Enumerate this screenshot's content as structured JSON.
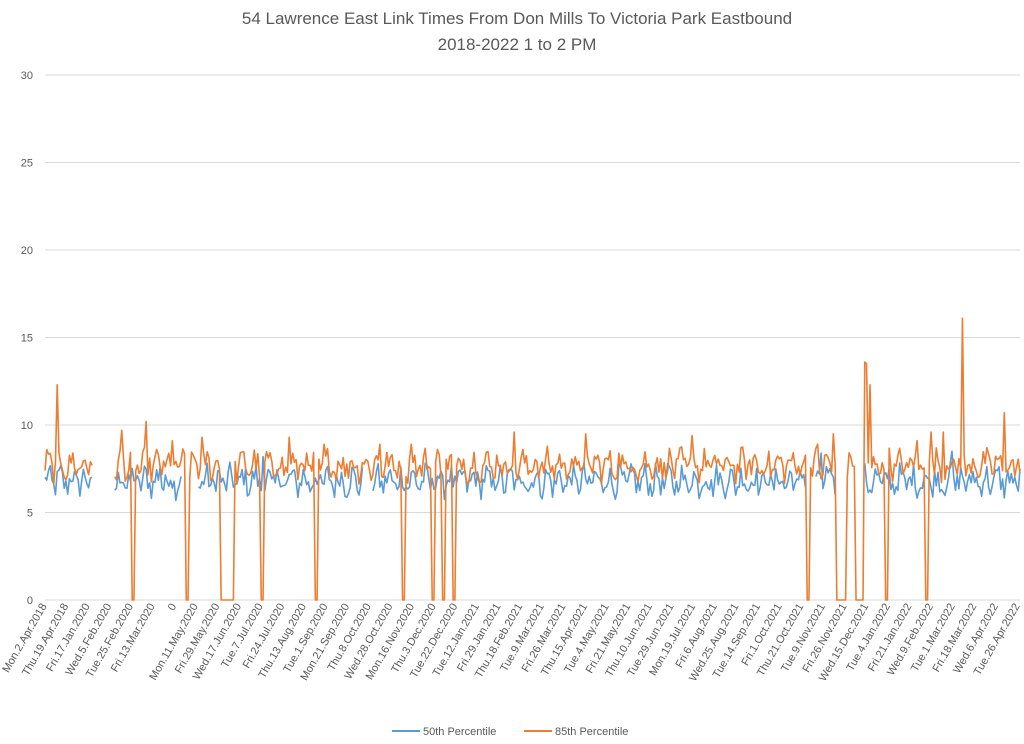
{
  "chart_data": {
    "type": "line",
    "title": "54 Lawrence East Link Times From Don Mills To Victoria Park Eastbound",
    "subtitle": "2018-2022 1 to 2 PM",
    "xlabel": "",
    "ylabel": "",
    "ylim": [
      0,
      30
    ],
    "yticks": [
      0,
      5,
      10,
      15,
      20,
      25,
      30
    ],
    "grid": true,
    "legend_position": "bottom",
    "x_tick_labels": [
      "Mon.2.Apr.2018",
      "Thu.19.Apr.2018",
      "Fri.17.Jan.2020",
      "Wed.5.Feb.2020",
      "Tue.25.Feb.2020",
      "Fri.13.Mar.2020",
      "0",
      "Mon.11.May.2020",
      "Fri.29.May.2020",
      "Wed.17.Jun.2020",
      "Tue.7.Jul.2020",
      "Fri.24.Jul.2020",
      "Thu.13.Aug.2020",
      "Tue.1.Sep.2020",
      "Mon.21.Sep.2020",
      "Thu.8.Oct.2020",
      "Wed.28.Oct.2020",
      "Mon.16.Nov.2020",
      "Thu.3.Dec.2020",
      "Tue.22.Dec.2020",
      "Tue.12.Jan.2021",
      "Fri.29.Jan.2021",
      "Thu.18.Feb.2021",
      "Tue.9.Mar.2021",
      "Fri.26.Mar.2021",
      "Thu.15.Apr.2021",
      "Tue.4.May.2021",
      "Fri.21.May.2021",
      "Thu.10.Jun.2021",
      "Tue.29.Jun.2021",
      "Mon.19.Jul.2021",
      "Fri.6.Aug.2021",
      "Wed.25.Aug.2021",
      "Tue.14.Sep.2021",
      "Fri.1.Oct.2021",
      "Thu.21.Oct.2021",
      "Tue.9.Nov.2021",
      "Fri.26.Nov.2021",
      "Wed.15.Dec.2021",
      "Tue.4.Jan.2022",
      "Fri.21.Jan.2022",
      "Wed.9.Feb.2022",
      "Tue.1.Mar.2022",
      "Fri.18.Mar.2022",
      "Wed.6.Apr.2022",
      "Tue.26.Apr.2022"
    ],
    "point_count": 560,
    "series_50_base": 6.8,
    "series_85_base": 7.7,
    "series": [
      {
        "name": "50th Percentile",
        "color": "#5b9bd5",
        "segments": [
          {
            "from": 0,
            "to": 28
          },
          {
            "from": 40,
            "to": 560
          }
        ],
        "spikes": [
          {
            "i": 66,
            "v": 7.6
          },
          {
            "i": 125,
            "v": 8.2
          },
          {
            "i": 445,
            "v": 8.4
          },
          {
            "i": 520,
            "v": 8.5
          }
        ],
        "gaps": [
          {
            "from": 79,
            "to": 87
          },
          {
            "from": 183,
            "to": 187
          },
          {
            "from": 437,
            "to": 441
          },
          {
            "from": 454,
            "to": 464
          },
          {
            "from": 465,
            "to": 469
          }
        ]
      },
      {
        "name": "85th Percentile",
        "color": "#ed7d31",
        "segments": [
          {
            "from": 0,
            "to": 28
          },
          {
            "from": 40,
            "to": 560
          }
        ],
        "spikes": [
          {
            "i": 7,
            "v": 12.3
          },
          {
            "i": 44,
            "v": 9.7
          },
          {
            "i": 58,
            "v": 10.2
          },
          {
            "i": 73,
            "v": 9.1
          },
          {
            "i": 81,
            "v": 10.3
          },
          {
            "i": 90,
            "v": 9.3
          },
          {
            "i": 102,
            "v": 8.9
          },
          {
            "i": 125,
            "v": 8.9
          },
          {
            "i": 140,
            "v": 9.3
          },
          {
            "i": 160,
            "v": 8.9
          },
          {
            "i": 192,
            "v": 8.9
          },
          {
            "i": 210,
            "v": 8.9
          },
          {
            "i": 234,
            "v": 10.2
          },
          {
            "i": 269,
            "v": 9.6
          },
          {
            "i": 310,
            "v": 9.5
          },
          {
            "i": 371,
            "v": 9.4
          },
          {
            "i": 443,
            "v": 8.9
          },
          {
            "i": 452,
            "v": 9.5
          },
          {
            "i": 470,
            "v": 13.6
          },
          {
            "i": 471,
            "v": 13.5
          },
          {
            "i": 473,
            "v": 12.3
          },
          {
            "i": 500,
            "v": 9.1
          },
          {
            "i": 505,
            "v": 12.5
          },
          {
            "i": 508,
            "v": 9.6
          },
          {
            "i": 515,
            "v": 9.6
          },
          {
            "i": 526,
            "v": 16.1
          },
          {
            "i": 550,
            "v": 10.7
          }
        ],
        "zeros": [
          {
            "from": 50,
            "to": 51
          },
          {
            "from": 81,
            "to": 82
          },
          {
            "from": 101,
            "to": 108
          },
          {
            "from": 124,
            "to": 125
          },
          {
            "from": 155,
            "to": 156
          },
          {
            "from": 205,
            "to": 206
          },
          {
            "from": 222,
            "to": 223
          },
          {
            "from": 228,
            "to": 229
          },
          {
            "from": 234,
            "to": 235
          },
          {
            "from": 437,
            "to": 438
          },
          {
            "from": 454,
            "to": 459
          },
          {
            "from": 465,
            "to": 467
          },
          {
            "from": 468,
            "to": 469
          },
          {
            "from": 482,
            "to": 483
          },
          {
            "from": 505,
            "to": 506
          }
        ]
      }
    ]
  }
}
